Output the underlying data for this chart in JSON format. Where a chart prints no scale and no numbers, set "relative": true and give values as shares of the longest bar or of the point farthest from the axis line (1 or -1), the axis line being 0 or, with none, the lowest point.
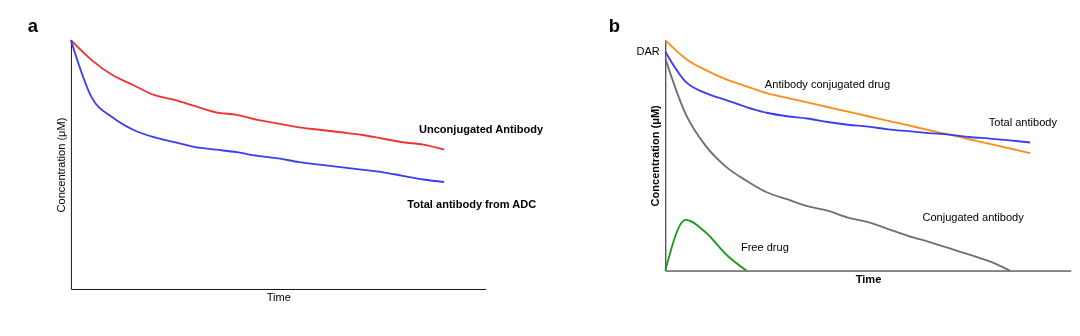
{
  "chart_data": [
    {
      "type": "line",
      "title": "a",
      "xlabel": "Time",
      "ylabel": "Concentration (μM)",
      "relative": true,
      "grid": false,
      "tick_labels": false,
      "categories": [
        null,
        null,
        null,
        null,
        null,
        null,
        null,
        null,
        null,
        null,
        null,
        null,
        null,
        null,
        null,
        null,
        null,
        null,
        null,
        null,
        null
      ],
      "series": [
        {
          "name": "Unconjugated Antibody",
          "color": "#f03232",
          "values": [
            1.0,
            0.92,
            0.86,
            0.82,
            0.78,
            0.76,
            0.735,
            0.71,
            0.7,
            0.68,
            0.665,
            0.65,
            0.64,
            0.63,
            0.62,
            0.605,
            0.59,
            0.58,
            0.56,
            null,
            null
          ]
        },
        {
          "name": "Total antibody from ADC",
          "color": "#3c3cf0",
          "values": [
            1.0,
            0.77,
            0.69,
            0.64,
            0.61,
            0.59,
            0.57,
            0.56,
            0.55,
            0.535,
            0.525,
            0.51,
            0.5,
            0.49,
            0.48,
            0.47,
            0.455,
            0.44,
            0.43,
            null,
            null
          ]
        }
      ]
    },
    {
      "type": "line",
      "title": "b",
      "xlabel": "Time",
      "ylabel": "Concentration (μM)",
      "relative": true,
      "grid": false,
      "tick_labels": false,
      "annotations": [
        "DAR"
      ],
      "categories": [
        null,
        null,
        null,
        null,
        null,
        null,
        null,
        null,
        null,
        null,
        null,
        null,
        null,
        null,
        null,
        null,
        null,
        null,
        null,
        null,
        null
      ],
      "series": [
        {
          "name": "Antibody conjugated drug",
          "color": "#ff8c1a",
          "values": [
            1.0,
            0.92,
            0.87,
            0.83,
            0.8,
            0.77,
            0.75,
            0.73,
            0.71,
            0.69,
            0.67,
            0.65,
            0.63,
            0.61,
            0.59,
            0.57,
            0.55,
            0.53,
            0.51,
            null,
            null
          ]
        },
        {
          "name": "Total antibody",
          "color": "#3c3cf0",
          "values": [
            0.95,
            0.82,
            0.77,
            0.74,
            0.71,
            0.685,
            0.67,
            0.66,
            0.645,
            0.633,
            0.625,
            0.613,
            0.605,
            0.597,
            0.59,
            0.58,
            0.573,
            0.565,
            0.556,
            null,
            null
          ]
        },
        {
          "name": "Conjugated antibody",
          "color": "#707070",
          "values": [
            0.92,
            0.68,
            0.54,
            0.45,
            0.39,
            0.34,
            0.31,
            0.28,
            0.26,
            0.23,
            0.21,
            0.18,
            0.15,
            0.125,
            0.097,
            0.069,
            0.04,
            0.0,
            null,
            null,
            null
          ]
        },
        {
          "name": "Free drug",
          "color": "#1a9a1a",
          "values": [
            0.0,
            0.22,
            0.165,
            0.07,
            0.0,
            null,
            null,
            null,
            null,
            null,
            null,
            null,
            null,
            null,
            null,
            null,
            null,
            null,
            null,
            null,
            null
          ]
        }
      ]
    }
  ]
}
